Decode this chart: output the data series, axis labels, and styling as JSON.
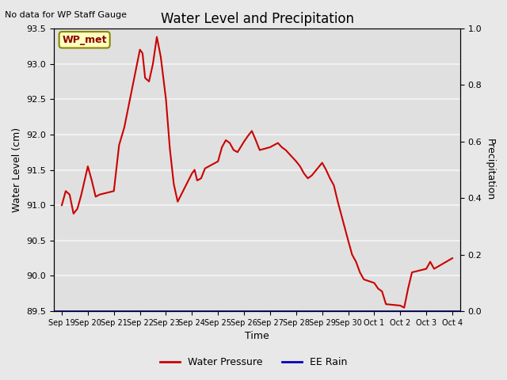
{
  "title": "Water Level and Precipitation",
  "subtitle": "No data for WP Staff Gauge",
  "xlabel": "Time",
  "ylabel_left": "Water Level (cm)",
  "ylabel_right": "Precipitation",
  "legend_entries": [
    "Water Pressure",
    "EE Rain"
  ],
  "legend_colors": [
    "#cc0000",
    "#0000bb"
  ],
  "wp_met_label": "WP_met",
  "ylim_left": [
    89.5,
    93.5
  ],
  "ylim_right": [
    0.0,
    1.0
  ],
  "yticks_left": [
    89.5,
    90.0,
    90.5,
    91.0,
    91.5,
    92.0,
    92.5,
    93.0,
    93.5
  ],
  "yticks_right": [
    0.0,
    0.2,
    0.4,
    0.6,
    0.8,
    1.0
  ],
  "background_color": "#e8e8e8",
  "plot_bg_color": "#e0e0e0",
  "grid_color": "#f5f5f5",
  "line_color": "#cc0000",
  "rain_color": "#0000bb",
  "x_days": [
    "Sep 19",
    "Sep 20",
    "Sep 21",
    "Sep 22",
    "Sep 23",
    "Sep 24",
    "Sep 25",
    "Sep 26",
    "Sep 27",
    "Sep 28",
    "Sep 29",
    "Sep 30",
    "Oct 1",
    "Oct 2",
    "Oct 3",
    "Oct 4"
  ],
  "water_level_x": [
    0.0,
    0.15,
    0.3,
    0.45,
    0.6,
    0.75,
    1.0,
    1.15,
    1.3,
    1.45,
    2.0,
    2.2,
    2.4,
    3.0,
    3.1,
    3.2,
    3.35,
    3.5,
    3.65,
    3.8,
    4.0,
    4.15,
    4.3,
    4.45,
    5.0,
    5.1,
    5.2,
    5.35,
    5.5,
    6.0,
    6.15,
    6.3,
    6.45,
    6.6,
    6.75,
    7.0,
    7.15,
    7.3,
    7.45,
    7.6,
    8.0,
    8.15,
    8.3,
    8.45,
    8.6,
    9.0,
    9.15,
    9.3,
    9.45,
    9.6,
    10.0,
    10.15,
    10.3,
    10.45,
    10.6,
    11.0,
    11.15,
    11.3,
    11.45,
    11.6,
    12.0,
    12.15,
    12.3,
    12.45,
    13.0,
    13.15,
    13.3,
    13.45,
    14.0,
    14.15,
    14.3,
    15.0
  ],
  "water_level_y": [
    91.0,
    91.2,
    91.15,
    90.88,
    90.95,
    91.15,
    91.55,
    91.35,
    91.12,
    91.15,
    91.2,
    91.85,
    92.1,
    93.2,
    93.15,
    92.8,
    92.75,
    93.0,
    93.38,
    93.1,
    92.5,
    91.8,
    91.3,
    91.05,
    91.45,
    91.5,
    91.35,
    91.38,
    91.52,
    91.62,
    91.82,
    91.92,
    91.88,
    91.78,
    91.75,
    91.9,
    91.98,
    92.05,
    91.92,
    91.78,
    91.82,
    91.85,
    91.88,
    91.82,
    91.78,
    91.62,
    91.55,
    91.45,
    91.38,
    91.42,
    91.6,
    91.5,
    91.38,
    91.28,
    91.05,
    90.5,
    90.3,
    90.2,
    90.05,
    89.95,
    89.9,
    89.82,
    89.78,
    89.6,
    89.58,
    89.55,
    89.82,
    90.05,
    90.1,
    90.2,
    90.1,
    90.25
  ]
}
